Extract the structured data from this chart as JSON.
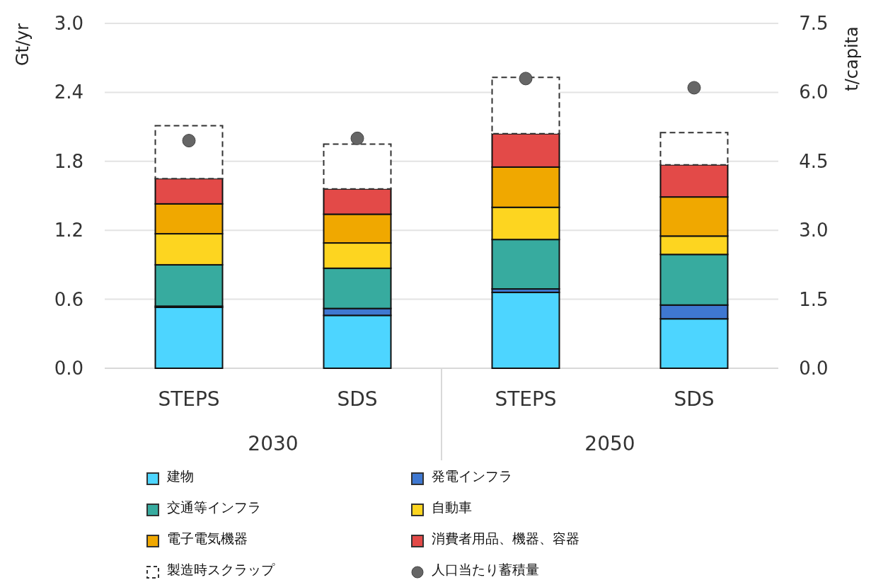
{
  "chart_data": {
    "type": "bar",
    "stacked": true,
    "ylabel": "Gt/yr",
    "y2label": "t/capita",
    "categories": [
      "STEPS",
      "SDS",
      "STEPS",
      "SDS"
    ],
    "annotations": [
      "2030",
      "2050"
    ],
    "series": [
      {
        "name": "建物",
        "color": "#4dd5ff",
        "values": [
          0.53,
          0.46,
          0.66,
          0.43
        ]
      },
      {
        "name": "発電インフラ",
        "color": "#3f78d1",
        "values": [
          0.01,
          0.06,
          0.03,
          0.12
        ]
      },
      {
        "name": "交通等インフラ",
        "color": "#37ab9f",
        "values": [
          0.36,
          0.35,
          0.43,
          0.44
        ]
      },
      {
        "name": "自動車",
        "color": "#fdd520",
        "values": [
          0.27,
          0.22,
          0.28,
          0.16
        ]
      },
      {
        "name": "電子電気機器",
        "color": "#f0a800",
        "values": [
          0.26,
          0.25,
          0.35,
          0.34
        ]
      },
      {
        "name": "消費者用品、機器、容器",
        "color": "#e34a48",
        "values": [
          0.22,
          0.22,
          0.29,
          0.28
        ]
      },
      {
        "name": "製造時スクラップ",
        "color": "#ffffff",
        "line_style": "dashed",
        "values": [
          0.46,
          0.39,
          0.49,
          0.28
        ]
      },
      {
        "name": "人口当たり蓄積量",
        "type": "scatter",
        "axis": "y2",
        "marker": "circle",
        "color": "#666666",
        "values": [
          4.95,
          5.0,
          6.3,
          6.1
        ]
      }
    ],
    "ylim": [
      0,
      3.0
    ],
    "yticks": [
      {
        "value": 0,
        "label": "0.0"
      },
      {
        "value": 0.6,
        "label": "0.6"
      },
      {
        "value": 1.2,
        "label": "1.2"
      },
      {
        "value": 1.8,
        "label": "1.8"
      },
      {
        "value": 2.4,
        "label": "2.4"
      },
      {
        "value": 3.0,
        "label": "3.0"
      }
    ],
    "y2lim": [
      0,
      7.5
    ],
    "y2ticks": [
      {
        "value": 0,
        "label": "0.0"
      },
      {
        "value": 1.5,
        "label": "1.5"
      },
      {
        "value": 3.0,
        "label": "3.0"
      },
      {
        "value": 4.5,
        "label": "4.5"
      },
      {
        "value": 6.0,
        "label": "6.0"
      },
      {
        "value": 7.5,
        "label": "7.5"
      }
    ],
    "grid": "y",
    "legend": "bottom"
  }
}
